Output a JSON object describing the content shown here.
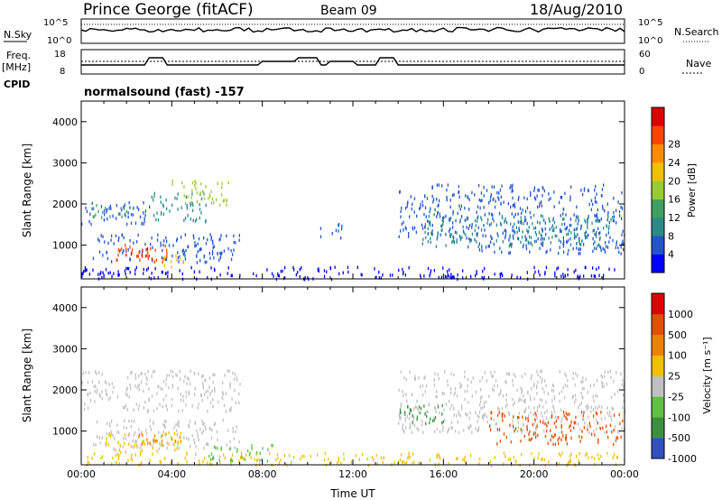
{
  "header": {
    "station": "Prince George (fitACF)",
    "beam": "Beam 09",
    "date": "18/Aug/2010"
  },
  "status_panels": {
    "left_labels": {
      "nsky": "N.Sky",
      "freq": "Freq.",
      "freq_unit": "[MHz]",
      "cpid": "CPID"
    },
    "right_labels": {
      "nsearch": "N.Search",
      "nave": "Nave"
    },
    "sky_ticks_left": [
      "10^5",
      "10^0"
    ],
    "sky_ticks_right": [
      "10^5",
      "10^0"
    ],
    "freq_ticks_left": [
      "18",
      "8"
    ],
    "freq_ticks_right": [
      "60",
      "0"
    ],
    "cpid_text": "normalsound (fast) -157"
  },
  "chart_data": [
    {
      "type": "heatmap",
      "name": "power",
      "ylabel": "Slant Range [km]",
      "ylim": [
        180,
        4500
      ],
      "yticks": [
        "1000",
        "2000",
        "3000",
        "4000"
      ],
      "xlim": [
        0,
        24
      ],
      "xticks": [
        "00:00",
        "04:00",
        "08:00",
        "12:00",
        "16:00",
        "20:00",
        "00:00"
      ],
      "colorbar": {
        "label": "Power [dB]",
        "ticks": [
          "4",
          "8",
          "12",
          "16",
          "20",
          "24",
          "28"
        ],
        "colors": [
          "#0000ff",
          "#2255cc",
          "#2b8a8a",
          "#3fa060",
          "#99cc33",
          "#f0c000",
          "#ff8c00",
          "#ff4400",
          "#e00000"
        ]
      },
      "regions": [
        {
          "t": [
            0.0,
            3.0
          ],
          "r": [
            1500,
            2100
          ],
          "color": "#2255cc"
        },
        {
          "t": [
            0.5,
            2.5
          ],
          "r": [
            1700,
            2000
          ],
          "color": "#3fa060"
        },
        {
          "t": [
            3.0,
            5.5
          ],
          "r": [
            1600,
            2300
          ],
          "color": "#2b8a8a"
        },
        {
          "t": [
            4.0,
            6.5
          ],
          "r": [
            2000,
            2600
          ],
          "color": "#99cc33"
        },
        {
          "t": [
            0.5,
            7.0
          ],
          "r": [
            600,
            1300
          ],
          "color": "#2255cc"
        },
        {
          "t": [
            1.5,
            3.8
          ],
          "r": [
            600,
            1050
          ],
          "color": "#ff4400"
        },
        {
          "t": [
            1.8,
            3.2
          ],
          "r": [
            700,
            950
          ],
          "color": "#e00000"
        },
        {
          "t": [
            3.5,
            4.5
          ],
          "r": [
            500,
            800
          ],
          "color": "#f0c000"
        },
        {
          "t": [
            0.0,
            24.0
          ],
          "r": [
            200,
            500
          ],
          "color": "#0000ff"
        },
        {
          "t": [
            10.5,
            11.5
          ],
          "r": [
            1200,
            1600
          ],
          "color": "#2255cc"
        },
        {
          "t": [
            14.0,
            17.0
          ],
          "r": [
            1200,
            2500
          ],
          "color": "#2255cc"
        },
        {
          "t": [
            17.0,
            24.0
          ],
          "r": [
            800,
            2500
          ],
          "color": "#2255cc"
        },
        {
          "t": [
            15.0,
            23.5
          ],
          "r": [
            1000,
            1800
          ],
          "color": "#2b8a8a"
        }
      ]
    },
    {
      "type": "heatmap",
      "name": "velocity",
      "ylabel": "Slant Range [km]",
      "ylim": [
        180,
        4500
      ],
      "yticks": [
        "1000",
        "2000",
        "3000",
        "4000"
      ],
      "xlim": [
        0,
        24
      ],
      "xticks": [
        "00:00",
        "04:00",
        "08:00",
        "12:00",
        "16:00",
        "20:00",
        "00:00"
      ],
      "xlabel": "Time UT",
      "colorbar": {
        "label": "Velocity [m s⁻¹]",
        "ticks": [
          "1000",
          "500",
          "100",
          "25",
          "-25",
          "-100",
          "-500",
          "-1000"
        ],
        "colors": [
          "#3050c0",
          "#3a9040",
          "#60c040",
          "#c0c0c0",
          "#f0c000",
          "#f08000",
          "#e05000",
          "#e00000"
        ]
      },
      "regions": [
        {
          "t": [
            0.0,
            7.0
          ],
          "r": [
            1500,
            2500
          ],
          "color": "#c0c0c0"
        },
        {
          "t": [
            0.5,
            7.0
          ],
          "r": [
            600,
            1300
          ],
          "color": "#c0c0c0"
        },
        {
          "t": [
            1.0,
            4.5
          ],
          "r": [
            500,
            1000
          ],
          "color": "#f0c000"
        },
        {
          "t": [
            2.5,
            4.5
          ],
          "r": [
            700,
            1000
          ],
          "color": "#f08000"
        },
        {
          "t": [
            0.0,
            24.0
          ],
          "r": [
            200,
            500
          ],
          "color": "#f0c000"
        },
        {
          "t": [
            5.5,
            8.5
          ],
          "r": [
            300,
            700
          ],
          "color": "#60c040"
        },
        {
          "t": [
            14.0,
            24.0
          ],
          "r": [
            1000,
            2500
          ],
          "color": "#c0c0c0"
        },
        {
          "t": [
            14.0,
            16.0
          ],
          "r": [
            1200,
            1700
          ],
          "color": "#3a9040"
        },
        {
          "t": [
            18.0,
            24.0
          ],
          "r": [
            700,
            1500
          ],
          "color": "#e05000"
        }
      ]
    }
  ]
}
